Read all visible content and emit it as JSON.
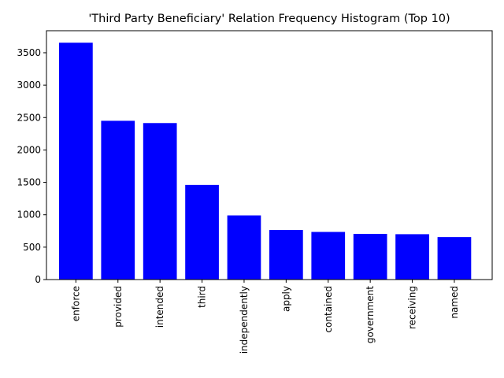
{
  "chart_data": {
    "type": "bar",
    "title": "'Third Party Beneficiary' Relation Frequency Histogram (Top 10)",
    "xlabel": "",
    "ylabel": "",
    "categories": [
      "enforce",
      "provided",
      "intended",
      "third",
      "independently",
      "apply",
      "contained",
      "government",
      "receiving",
      "named"
    ],
    "values": [
      3655,
      2450,
      2415,
      1460,
      990,
      765,
      735,
      705,
      700,
      655
    ],
    "ylim": [
      0,
      3840
    ],
    "yticks": [
      0,
      500,
      1000,
      1500,
      2000,
      2500,
      3000,
      3500
    ],
    "grid": false,
    "bar_color": "#0000ff"
  }
}
